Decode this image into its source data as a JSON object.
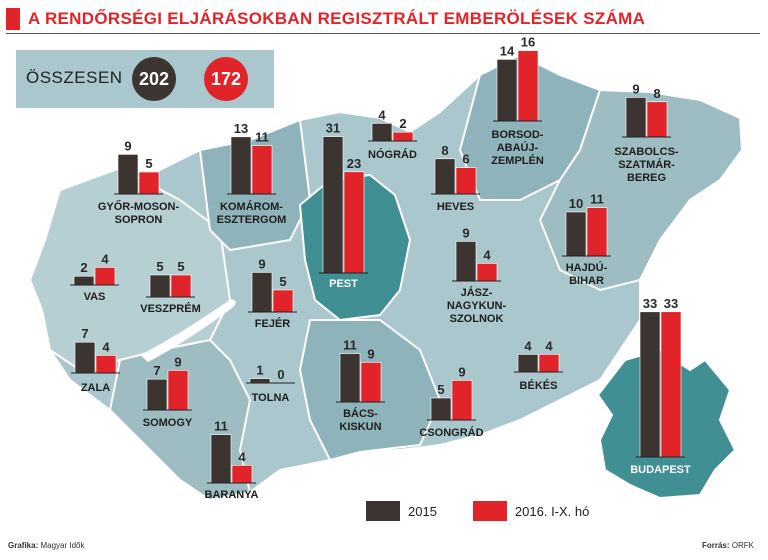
{
  "title": "A RENDŐRSÉGI ELJÁRÁSOKBAN REGISZTRÁLT EMBERÖLÉSEK SZÁMA",
  "totals": {
    "label": "ÖSSZESEN",
    "value_2015": "202",
    "value_2016": "172"
  },
  "legend": {
    "series_2015": "2015",
    "series_2016": "2016. I-X. hó"
  },
  "footer": {
    "credit_label": "Grafika:",
    "credit_value": "Magyar Idők",
    "source_label": "Forrás:",
    "source_value": "ORFK"
  },
  "colors": {
    "series_2015": "#3c3431",
    "series_2016": "#e0242a",
    "map_light": "#a9c7cc",
    "map_mid": "#8fb3ba",
    "map_highlight": "#3f8f93",
    "title": "#e0242a"
  },
  "chart_data": {
    "type": "bar",
    "title": "A RENDŐRSÉGI ELJÁRÁSOKBAN REGISZTRÁLT EMBERÖLÉSEK SZÁMA",
    "series": [
      {
        "name": "2015",
        "color": "#3c3431"
      },
      {
        "name": "2016. I-X. hó",
        "color": "#e0242a"
      }
    ],
    "categories": [
      {
        "id": "gyor",
        "label": [
          "GYŐR-MOSON-",
          "SOPRON"
        ],
        "v2015": 9,
        "v2016": 5
      },
      {
        "id": "komarom",
        "label": [
          "KOMÁROM-",
          "ESZTERGOM"
        ],
        "v2015": 13,
        "v2016": 11
      },
      {
        "id": "pest",
        "label": [
          "PEST"
        ],
        "v2015": 31,
        "v2016": 23
      },
      {
        "id": "nograd",
        "label": [
          "NÓGRÁD"
        ],
        "v2015": 4,
        "v2016": 2
      },
      {
        "id": "borsod",
        "label": [
          "BORSOD-",
          "ABAÚJ-",
          "ZEMPLÉN"
        ],
        "v2015": 14,
        "v2016": 16
      },
      {
        "id": "szabolcs",
        "label": [
          "SZABOLCS-",
          "SZATMÁR-",
          "BEREG"
        ],
        "v2015": 9,
        "v2016": 8
      },
      {
        "id": "heves",
        "label": [
          "HEVES"
        ],
        "v2015": 8,
        "v2016": 6
      },
      {
        "id": "vas",
        "label": [
          "VAS"
        ],
        "v2015": 2,
        "v2016": 4
      },
      {
        "id": "veszprem",
        "label": [
          "VESZPRÉM"
        ],
        "v2015": 5,
        "v2016": 5
      },
      {
        "id": "fejer",
        "label": [
          "FEJÉR"
        ],
        "v2015": 9,
        "v2016": 5
      },
      {
        "id": "jasz",
        "label": [
          "JÁSZ-",
          "NAGYKUN-",
          "SZOLNOK"
        ],
        "v2015": 9,
        "v2016": 4
      },
      {
        "id": "hajdu",
        "label": [
          "HAJDÚ-",
          "BIHAR"
        ],
        "v2015": 10,
        "v2016": 11
      },
      {
        "id": "zala",
        "label": [
          "ZALA"
        ],
        "v2015": 7,
        "v2016": 4
      },
      {
        "id": "somogy",
        "label": [
          "SOMOGY"
        ],
        "v2015": 7,
        "v2016": 9
      },
      {
        "id": "tolna",
        "label": [
          "TOLNA"
        ],
        "v2015": 1,
        "v2016": 0
      },
      {
        "id": "bacs",
        "label": [
          "BÁCS-",
          "KISKUN"
        ],
        "v2015": 11,
        "v2016": 9
      },
      {
        "id": "bekes",
        "label": [
          "BÉKÉS"
        ],
        "v2015": 4,
        "v2016": 4
      },
      {
        "id": "csongrad",
        "label": [
          "CSONGRÁD"
        ],
        "v2015": 5,
        "v2016": 9
      },
      {
        "id": "budapest",
        "label": [
          "BUDAPEST"
        ],
        "v2015": 33,
        "v2016": 33
      },
      {
        "id": "baranya",
        "label": [
          "BARANYA"
        ],
        "v2015": 11,
        "v2016": 4
      }
    ]
  }
}
